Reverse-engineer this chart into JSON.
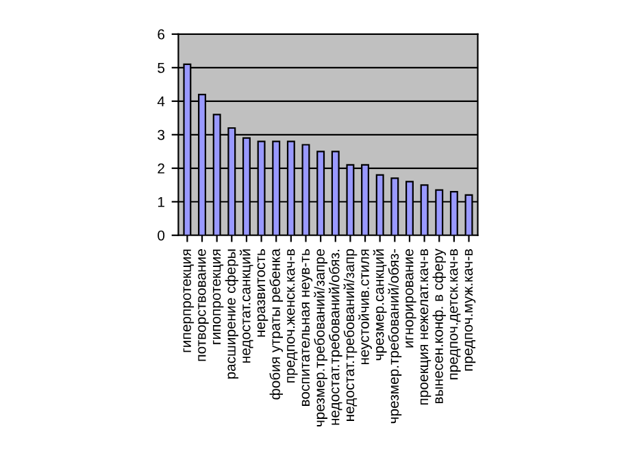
{
  "chart_data": {
    "type": "bar",
    "categories": [
      "гиперпротекция",
      "потворствование",
      "гипопротекция",
      "расширение сферы",
      "недостат.санкций",
      "неразвитость",
      "фобия утраты ребенка",
      "предпоч.женск.кач-в",
      "воспитательная неув-ть",
      "чрезмер.требований/запре",
      "недостат.требований/обяз.",
      "недостат.требований/запр",
      "неустойчив.стиля",
      "чрезмер.санкций",
      "чрезмер.требований/обяз-",
      "игнорирование",
      "проекция нежелат.кач-в",
      "вынесен.конф. в сферу",
      "предпоч.детск.кач-в",
      "предпоч.муж.кач-в"
    ],
    "values": [
      5.1,
      4.2,
      3.6,
      3.2,
      2.9,
      2.8,
      2.8,
      2.8,
      2.7,
      2.5,
      2.5,
      2.1,
      2.1,
      1.8,
      1.7,
      1.6,
      1.5,
      1.35,
      1.3,
      1.2
    ],
    "color": "#9999ff",
    "ylim": [
      0,
      6
    ],
    "yticks": [
      0,
      1,
      2,
      3,
      4,
      5,
      6
    ],
    "grid": "y",
    "legend": false
  }
}
